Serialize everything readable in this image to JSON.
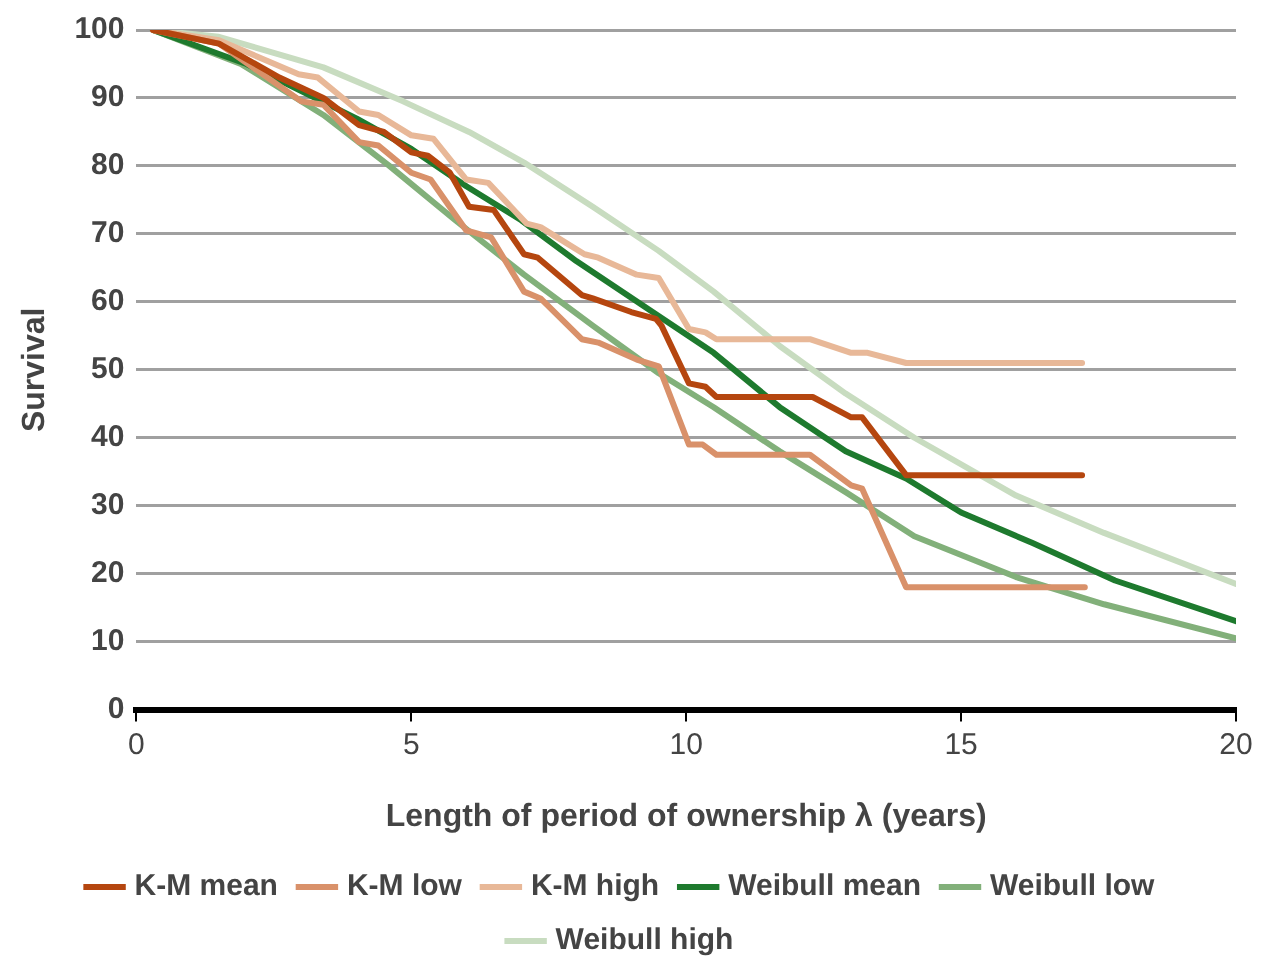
{
  "chart_data": {
    "type": "line",
    "xlabel": "Length of period of ownership λ (years)",
    "ylabel": "Survival",
    "xlim": [
      0,
      20
    ],
    "xticks": [
      0,
      5,
      10,
      15,
      20
    ],
    "ylim": [
      0,
      100
    ],
    "yticks": [
      0,
      10,
      20,
      30,
      40,
      50,
      60,
      70,
      80,
      90,
      100
    ],
    "grid": "y",
    "legend": "bottom",
    "marker": "none",
    "series": [
      {
        "name": "K-M mean",
        "color": "#b5460f",
        "x": [
          0.3,
          1.5,
          2.6,
          3.4,
          4.05,
          4.5,
          5.0,
          5.3,
          5.7,
          6.05,
          6.5,
          7.05,
          7.3,
          8.1,
          8.3,
          9.0,
          9.45,
          9.55,
          10.05,
          10.35,
          10.55,
          12.3,
          13.0,
          13.2,
          14.0,
          17.2
        ],
        "values": [
          100,
          98,
          93,
          90,
          86,
          85,
          82,
          81.5,
          79,
          74,
          73.5,
          67,
          66.5,
          61,
          60.5,
          58.5,
          57.5,
          56.5,
          48,
          47.5,
          46,
          46,
          43,
          43,
          34.5,
          34.5
        ]
      },
      {
        "name": "K-M low",
        "color": "#d9916a",
        "x": [
          0.3,
          1.5,
          3.0,
          3.4,
          4.05,
          4.4,
          5.0,
          5.35,
          6.0,
          6.45,
          7.05,
          7.35,
          8.1,
          8.4,
          9.1,
          9.5,
          10.05,
          10.3,
          10.55,
          12.25,
          13.0,
          13.2,
          14.0,
          17.25
        ],
        "values": [
          100,
          98,
          89.5,
          89,
          83.5,
          83,
          79,
          78,
          70.5,
          69.5,
          61.5,
          60.5,
          54.5,
          54,
          51.5,
          50.5,
          39,
          39,
          37.5,
          37.5,
          33,
          32.5,
          18,
          18
        ]
      },
      {
        "name": "K-M high",
        "color": "#e8b898",
        "x": [
          0.3,
          1.5,
          2.95,
          3.3,
          4.05,
          4.4,
          5.0,
          5.4,
          6.0,
          6.4,
          7.1,
          7.35,
          8.15,
          8.4,
          9.1,
          9.5,
          10.05,
          10.35,
          10.55,
          12.25,
          13.0,
          13.3,
          14.0,
          17.2
        ],
        "values": [
          100,
          98.5,
          93.5,
          93,
          88,
          87.5,
          84.5,
          84,
          78,
          77.5,
          71.5,
          71,
          67,
          66.5,
          64,
          63.5,
          56,
          55.5,
          54.5,
          54.5,
          52.5,
          52.5,
          51,
          51
        ]
      },
      {
        "name": "Weibull mean",
        "color": "#1e7a2e",
        "x": [
          0.3,
          2,
          4,
          5,
          6,
          7,
          8,
          9.3,
          10.5,
          11.7,
          12.9,
          14,
          15,
          16.3,
          17.8,
          20
        ],
        "values": [
          100,
          95,
          87,
          82.5,
          77,
          72,
          66,
          59,
          52.5,
          44.5,
          38,
          34,
          29,
          24.5,
          19,
          13
        ]
      },
      {
        "name": "Weibull low",
        "color": "#82b07a",
        "x": [
          0.3,
          1.9,
          3.4,
          4.6,
          5.8,
          7.05,
          8.3,
          9.5,
          10.5,
          11.7,
          12.9,
          14.15,
          16,
          17.6,
          20
        ],
        "values": [
          100,
          95,
          87.5,
          80,
          72,
          64,
          56.5,
          49.5,
          44.5,
          38,
          32,
          25.5,
          19.5,
          15.5,
          10.5
        ]
      },
      {
        "name": "Weibull high",
        "color": "#c8dcc0",
        "x": [
          0.3,
          1.5,
          3.4,
          4.85,
          6.05,
          7.05,
          8.3,
          9.5,
          10.5,
          11.7,
          12.9,
          14.15,
          16,
          17.6,
          20
        ],
        "values": [
          100,
          99,
          94.5,
          89.5,
          85,
          80.5,
          74,
          67.5,
          61.5,
          53.5,
          46.5,
          40,
          31.5,
          26,
          18.5
        ]
      }
    ]
  }
}
